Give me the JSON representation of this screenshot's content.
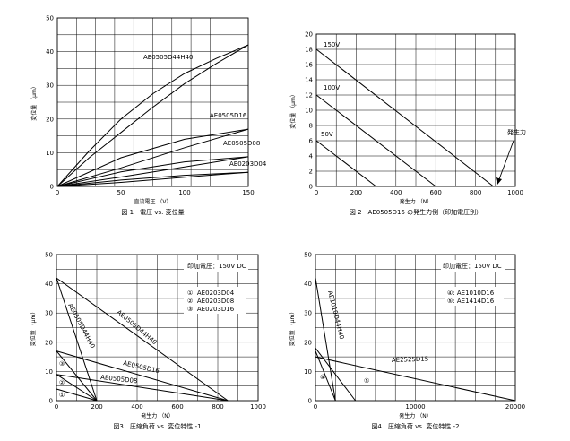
{
  "chart_data": [
    {
      "type": "line",
      "caption": "図 1　電圧 vs. 変位量",
      "xlabel": "直流電圧 （V）",
      "ylabel": "変位量 （μm）",
      "xlim": [
        0,
        150
      ],
      "ylim": [
        0,
        50
      ],
      "xticks": [
        0,
        50,
        100,
        150
      ],
      "yticks": [
        0,
        10,
        20,
        30,
        40,
        50
      ],
      "grid": true,
      "series": [
        {
          "name": "AE0505D44H40",
          "up": [
            [
              0,
              0
            ],
            [
              25,
              8.5
            ],
            [
              50,
              16
            ],
            [
              75,
              23.5
            ],
            [
              100,
              30.5
            ],
            [
              125,
              36.5
            ],
            [
              150,
              42
            ]
          ],
          "down": [
            [
              150,
              42
            ],
            [
              125,
              38
            ],
            [
              100,
              33.5
            ],
            [
              75,
              27.5
            ],
            [
              50,
              20
            ],
            [
              25,
              10.5
            ],
            [
              0,
              0
            ]
          ]
        },
        {
          "name": "AE0505D16",
          "up": [
            [
              0,
              0
            ],
            [
              50,
              5.5
            ],
            [
              100,
              11.5
            ],
            [
              150,
              17
            ]
          ],
          "down": [
            [
              150,
              17
            ],
            [
              100,
              14
            ],
            [
              50,
              8.5
            ],
            [
              0,
              0
            ]
          ]
        },
        {
          "name": "AE0505D08",
          "up": [
            [
              0,
              0
            ],
            [
              50,
              2.8
            ],
            [
              100,
              5.8
            ],
            [
              150,
              8.8
            ]
          ],
          "down": [
            [
              150,
              8.8
            ],
            [
              100,
              7.3
            ],
            [
              50,
              4.3
            ],
            [
              0,
              0
            ]
          ]
        },
        {
          "name": "AE0203D04",
          "up": [
            [
              0,
              0
            ],
            [
              50,
              1.2
            ],
            [
              100,
              2.7
            ],
            [
              150,
              4.2
            ]
          ],
          "down": [
            [
              150,
              4.2
            ],
            [
              100,
              3.3
            ],
            [
              50,
              1.9
            ],
            [
              0,
              0
            ]
          ]
        }
      ]
    },
    {
      "type": "line",
      "caption": "図 2　AE0505D16 の発生力例（印加電圧別）",
      "xlabel": "発生力 （N）",
      "ylabel": "変位量 （μm）",
      "xlim": [
        0,
        1000
      ],
      "ylim": [
        0,
        20
      ],
      "xticks": [
        0,
        200,
        400,
        600,
        800,
        1000
      ],
      "yticks": [
        0,
        2,
        4,
        6,
        8,
        10,
        12,
        14,
        16,
        18,
        20
      ],
      "grid": true,
      "annotation": "発生力",
      "series": [
        {
          "name": "150V",
          "points": [
            [
              0,
              18
            ],
            [
              890,
              0
            ]
          ]
        },
        {
          "name": "100V",
          "points": [
            [
              0,
              12
            ],
            [
              600,
              0
            ]
          ]
        },
        {
          "name": "50V",
          "points": [
            [
              0,
              6
            ],
            [
              300,
              0
            ]
          ]
        }
      ]
    },
    {
      "type": "line",
      "caption": "図3　圧縮負荷 vs. 変位特性 -1",
      "xlabel": "発生力 （N）",
      "ylabel": "変位量 （μm）",
      "xlim": [
        0,
        1000
      ],
      "ylim": [
        0,
        50
      ],
      "xticks": [
        0,
        200,
        400,
        600,
        800,
        1000
      ],
      "yticks": [
        0,
        10,
        20,
        30,
        40,
        50
      ],
      "grid": true,
      "note": "印加電圧：150V DC",
      "legend": [
        "①: AE0203D04",
        "②: AE0203D08",
        "③: AE0203D16"
      ],
      "series": [
        {
          "name": "AE0505D44H40",
          "points": [
            [
              0,
              42
            ],
            [
              200,
              0
            ]
          ]
        },
        {
          "name": "AE0505D44H40",
          "points": [
            [
              0,
              42
            ],
            [
              850,
              0
            ]
          ]
        },
        {
          "name": "AE0505D16",
          "points": [
            [
              0,
              17
            ],
            [
              850,
              0
            ]
          ]
        },
        {
          "name": "AE0505D08",
          "points": [
            [
              0,
              9
            ],
            [
              850,
              0
            ]
          ]
        },
        {
          "name": "③",
          "points": [
            [
              0,
              17
            ],
            [
              200,
              0
            ]
          ]
        },
        {
          "name": "②",
          "points": [
            [
              0,
              9
            ],
            [
              200,
              0
            ]
          ]
        },
        {
          "name": "①",
          "points": [
            [
              0,
              4
            ],
            [
              200,
              0
            ]
          ]
        }
      ]
    },
    {
      "type": "line",
      "caption": "図4　圧縮負荷 vs. 変位特性 -2",
      "xlabel": "発生力 （N）",
      "ylabel": "変位量 （μm）",
      "xlim": [
        0,
        20000
      ],
      "ylim": [
        0,
        50
      ],
      "xticks": [
        0,
        10000,
        20000
      ],
      "yticks": [
        0,
        10,
        20,
        30,
        40,
        50
      ],
      "grid": true,
      "note": "印加電圧：150V DC",
      "legend": [
        "④: AE1010D16",
        "⑤: AE1414D16"
      ],
      "series": [
        {
          "name": "AE1010D44H40",
          "points": [
            [
              0,
              42
            ],
            [
              2000,
              0
            ]
          ]
        },
        {
          "name": "AE2525D15",
          "points": [
            [
              0,
              15
            ],
            [
              20000,
              0
            ]
          ]
        },
        {
          "name": "④",
          "points": [
            [
              0,
              17
            ],
            [
              2000,
              0
            ]
          ]
        },
        {
          "name": "⑤",
          "points": [
            [
              0,
              18
            ],
            [
              4000,
              0
            ]
          ]
        }
      ]
    }
  ]
}
